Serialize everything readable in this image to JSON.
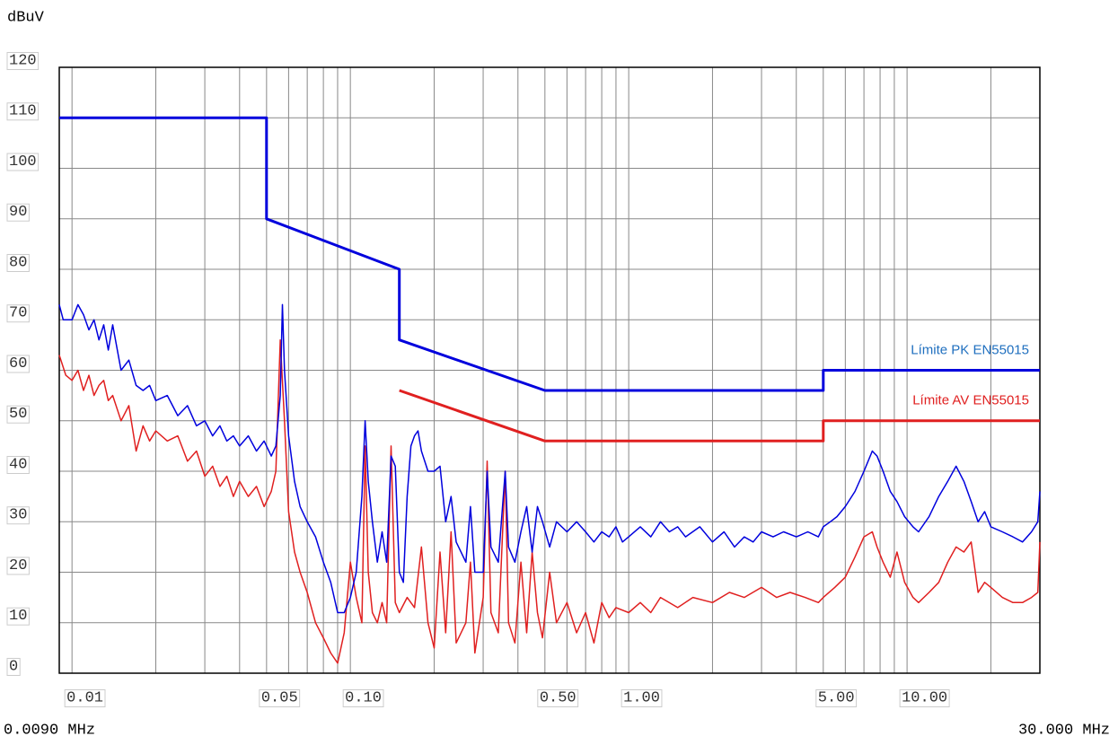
{
  "chart_data": {
    "type": "line",
    "y_label": "dBuV",
    "x_start_label": "0.0090 MHz",
    "x_end_label": "30.000 MHz",
    "log_x": true,
    "grid": true,
    "xlim": [
      0.009,
      30
    ],
    "ylim": [
      0,
      120
    ],
    "yticks": [
      0,
      10,
      20,
      30,
      40,
      50,
      60,
      70,
      80,
      90,
      100,
      110,
      120
    ],
    "xticks": [
      0.01,
      0.05,
      {
        "value": 0.1,
        "label": "0.10"
      },
      {
        "value": 0.5,
        "label": "0.50"
      },
      {
        "value": 1,
        "label": "1.00"
      },
      {
        "value": 5,
        "label": "5.00"
      },
      {
        "value": 10,
        "label": "10.00"
      }
    ],
    "xgrid_minor": [
      0.02,
      0.03,
      0.04,
      0.06,
      0.07,
      0.08,
      0.09,
      0.2,
      0.3,
      0.4,
      0.6,
      0.7,
      0.8,
      0.9,
      2,
      3,
      4,
      6,
      7,
      8,
      9,
      20
    ],
    "series": [
      {
        "name": "Límite PK EN55015",
        "color": "#0000dd",
        "label_color": "#1f6fbf",
        "x": [
          0.009,
          0.05,
          0.05,
          0.15,
          0.15,
          0.5,
          5,
          5,
          30
        ],
        "values": [
          110,
          110,
          90,
          80,
          66,
          56,
          56,
          60,
          60
        ]
      },
      {
        "name": "Límite AV EN55015",
        "color": "#e02020",
        "label_color": "#e02020",
        "x": [
          0.15,
          0.5,
          5,
          5,
          30
        ],
        "values": [
          56,
          46,
          46,
          50,
          50
        ]
      },
      {
        "color": "#0000dd",
        "x": [
          0.009,
          0.0093,
          0.01,
          0.0105,
          0.011,
          0.0115,
          0.012,
          0.0125,
          0.013,
          0.0135,
          0.014,
          0.015,
          0.016,
          0.017,
          0.018,
          0.019,
          0.02,
          0.022,
          0.024,
          0.026,
          0.028,
          0.03,
          0.032,
          0.034,
          0.036,
          0.038,
          0.04,
          0.043,
          0.046,
          0.049,
          0.052,
          0.054,
          0.056,
          0.057,
          0.058,
          0.06,
          0.063,
          0.066,
          0.07,
          0.075,
          0.08,
          0.085,
          0.09,
          0.095,
          0.1,
          0.105,
          0.11,
          0.113,
          0.116,
          0.12,
          0.125,
          0.13,
          0.135,
          0.14,
          0.145,
          0.15,
          0.155,
          0.16,
          0.165,
          0.17,
          0.175,
          0.18,
          0.19,
          0.2,
          0.21,
          0.22,
          0.23,
          0.24,
          0.26,
          0.27,
          0.28,
          0.3,
          0.31,
          0.32,
          0.34,
          0.36,
          0.37,
          0.39,
          0.41,
          0.43,
          0.45,
          0.47,
          0.49,
          0.52,
          0.55,
          0.6,
          0.65,
          0.7,
          0.75,
          0.8,
          0.85,
          0.9,
          0.95,
          1,
          1.1,
          1.2,
          1.3,
          1.4,
          1.5,
          1.6,
          1.8,
          2,
          2.2,
          2.4,
          2.6,
          2.8,
          3,
          3.3,
          3.6,
          4,
          4.4,
          4.8,
          5,
          5.3,
          5.6,
          6,
          6.5,
          7,
          7.5,
          7.8,
          8.2,
          8.7,
          9.2,
          9.8,
          10.5,
          11,
          12,
          13,
          14,
          15,
          16,
          17,
          18,
          19,
          20,
          22,
          24,
          26,
          28,
          29.5,
          30
        ],
        "values": [
          73,
          70,
          70,
          73,
          71,
          68,
          70,
          66,
          69,
          64,
          69,
          60,
          62,
          57,
          56,
          57,
          54,
          55,
          51,
          53,
          49,
          50,
          47,
          49,
          46,
          47,
          45,
          47,
          44,
          46,
          43,
          45,
          55,
          73,
          60,
          47,
          38,
          33,
          30,
          27,
          22,
          18,
          12,
          12,
          15,
          20,
          35,
          50,
          38,
          30,
          22,
          28,
          22,
          43,
          41,
          20,
          18,
          35,
          45,
          47,
          48,
          44,
          40,
          40,
          41,
          30,
          35,
          26,
          22,
          33,
          20,
          20,
          40,
          25,
          22,
          40,
          25,
          22,
          28,
          33,
          24,
          33,
          30,
          25,
          30,
          28,
          30,
          28,
          26,
          28,
          27,
          29,
          26,
          27,
          29,
          27,
          30,
          28,
          29,
          27,
          29,
          26,
          28,
          25,
          27,
          26,
          28,
          27,
          28,
          27,
          28,
          27,
          29,
          30,
          31,
          33,
          36,
          40,
          44,
          43,
          40,
          36,
          34,
          31,
          29,
          28,
          31,
          35,
          38,
          41,
          38,
          34,
          30,
          32,
          29,
          28,
          27,
          26,
          28,
          30,
          36
        ]
      },
      {
        "color": "#e02020",
        "x": [
          0.009,
          0.0095,
          0.01,
          0.0105,
          0.011,
          0.0115,
          0.012,
          0.0125,
          0.013,
          0.0135,
          0.014,
          0.015,
          0.016,
          0.017,
          0.018,
          0.019,
          0.02,
          0.022,
          0.024,
          0.026,
          0.028,
          0.03,
          0.032,
          0.034,
          0.036,
          0.038,
          0.04,
          0.043,
          0.046,
          0.049,
          0.052,
          0.054,
          0.056,
          0.058,
          0.06,
          0.063,
          0.066,
          0.07,
          0.075,
          0.08,
          0.085,
          0.09,
          0.095,
          0.1,
          0.105,
          0.11,
          0.113,
          0.116,
          0.12,
          0.125,
          0.13,
          0.135,
          0.14,
          0.145,
          0.15,
          0.16,
          0.17,
          0.18,
          0.19,
          0.2,
          0.21,
          0.22,
          0.23,
          0.24,
          0.26,
          0.27,
          0.28,
          0.3,
          0.31,
          0.32,
          0.34,
          0.36,
          0.37,
          0.39,
          0.41,
          0.43,
          0.45,
          0.47,
          0.49,
          0.52,
          0.55,
          0.6,
          0.65,
          0.7,
          0.75,
          0.8,
          0.85,
          0.9,
          1,
          1.1,
          1.2,
          1.3,
          1.5,
          1.7,
          2,
          2.3,
          2.6,
          3,
          3.4,
          3.8,
          4.3,
          4.8,
          5,
          5.5,
          6,
          6.5,
          7,
          7.5,
          7.8,
          8.2,
          8.7,
          9.2,
          9.8,
          10.5,
          11,
          12,
          13,
          14,
          15,
          16,
          17,
          18,
          19,
          20,
          22,
          24,
          26,
          28,
          29.5,
          30
        ],
        "values": [
          63,
          59,
          58,
          60,
          56,
          59,
          55,
          57,
          58,
          54,
          55,
          50,
          53,
          44,
          49,
          46,
          48,
          46,
          47,
          42,
          44,
          39,
          41,
          37,
          39,
          35,
          38,
          35,
          37,
          33,
          36,
          40,
          66,
          50,
          32,
          24,
          20,
          16,
          10,
          7,
          4,
          2,
          8,
          22,
          15,
          10,
          45,
          20,
          12,
          10,
          14,
          10,
          45,
          14,
          12,
          15,
          13,
          25,
          10,
          5,
          24,
          8,
          28,
          6,
          10,
          22,
          4,
          15,
          42,
          12,
          8,
          40,
          10,
          6,
          22,
          8,
          24,
          12,
          7,
          20,
          10,
          14,
          8,
          12,
          6,
          14,
          11,
          13,
          12,
          14,
          12,
          15,
          13,
          15,
          14,
          16,
          15,
          17,
          15,
          16,
          15,
          14,
          15,
          17,
          19,
          23,
          27,
          28,
          25,
          22,
          19,
          24,
          18,
          15,
          14,
          16,
          18,
          22,
          25,
          24,
          26,
          16,
          18,
          17,
          15,
          14,
          14,
          15,
          16,
          26
        ]
      }
    ]
  }
}
